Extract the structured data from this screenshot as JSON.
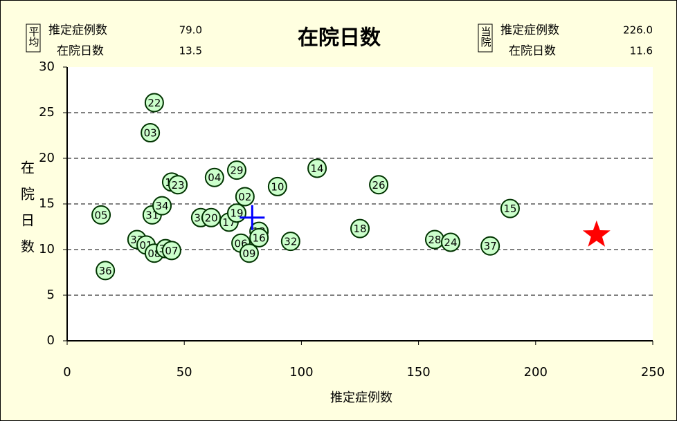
{
  "chart_data": {
    "type": "scatter",
    "title": "在院日数",
    "xlabel": "推定症例数",
    "ylabel": "在院日数",
    "xlim": [
      0,
      250
    ],
    "xticks": [
      0,
      50,
      100,
      150,
      200,
      250
    ],
    "ylim": [
      0,
      30
    ],
    "yticks": [
      0,
      5,
      10,
      15,
      20,
      25,
      30
    ],
    "grid": true,
    "marker_color": "#ccffcc",
    "marker_edge": "#003300",
    "points": [
      {
        "label": "22",
        "x": 37.2,
        "y": 26.1
      },
      {
        "label": "03",
        "x": 35.5,
        "y": 22.8
      },
      {
        "label": "05",
        "x": 14.5,
        "y": 13.8
      },
      {
        "label": "36",
        "x": 16.3,
        "y": 7.7
      },
      {
        "label": "33",
        "x": 29.8,
        "y": 11.1
      },
      {
        "label": "01",
        "x": 33.7,
        "y": 10.5
      },
      {
        "label": "08",
        "x": 37.2,
        "y": 9.6
      },
      {
        "label": "30",
        "x": 42.0,
        "y": 10.1
      },
      {
        "label": "07",
        "x": 44.6,
        "y": 9.9
      },
      {
        "label": "31",
        "x": 36.3,
        "y": 13.8
      },
      {
        "label": "34",
        "x": 40.5,
        "y": 14.8
      },
      {
        "label": "12",
        "x": 44.6,
        "y": 17.4
      },
      {
        "label": "23",
        "x": 47.3,
        "y": 17.1
      },
      {
        "label": "30",
        "x": 57.0,
        "y": 13.5
      },
      {
        "label": "20",
        "x": 61.5,
        "y": 13.5
      },
      {
        "label": "04",
        "x": 62.9,
        "y": 17.9
      },
      {
        "label": "17",
        "x": 69.1,
        "y": 13.0
      },
      {
        "label": "19",
        "x": 72.4,
        "y": 14.0
      },
      {
        "label": "29",
        "x": 72.4,
        "y": 18.7
      },
      {
        "label": "02",
        "x": 75.9,
        "y": 15.8
      },
      {
        "label": "06",
        "x": 74.2,
        "y": 10.7
      },
      {
        "label": "09",
        "x": 77.7,
        "y": 9.6
      },
      {
        "label": "13",
        "x": 81.9,
        "y": 12.0
      },
      {
        "label": "16",
        "x": 81.9,
        "y": 11.3
      },
      {
        "label": "10",
        "x": 89.8,
        "y": 16.9
      },
      {
        "label": "32",
        "x": 95.4,
        "y": 10.9
      },
      {
        "label": "14",
        "x": 106.7,
        "y": 18.9
      },
      {
        "label": "18",
        "x": 125.0,
        "y": 12.3
      },
      {
        "label": "26",
        "x": 133.0,
        "y": 17.1
      },
      {
        "label": "28",
        "x": 156.9,
        "y": 11.1
      },
      {
        "label": "24",
        "x": 163.7,
        "y": 10.8
      },
      {
        "label": "37",
        "x": 180.6,
        "y": 10.4
      },
      {
        "label": "15",
        "x": 189.1,
        "y": 14.5
      }
    ],
    "average": {
      "label": "平均",
      "color": "#0000ff",
      "rows": [
        {
          "name": "推定症例数",
          "value": 79,
          "value_label": "79.0"
        },
        {
          "name": "在院日数",
          "value": 13.5,
          "value_label": "13.5"
        }
      ]
    },
    "hospital": {
      "label": "当院",
      "color": "#ff0000",
      "rows": [
        {
          "name": "推定症例数",
          "value": 226,
          "value_label": "226.0"
        },
        {
          "name": "在院日数",
          "value": 11.6,
          "value_label": "11.6"
        }
      ]
    }
  }
}
